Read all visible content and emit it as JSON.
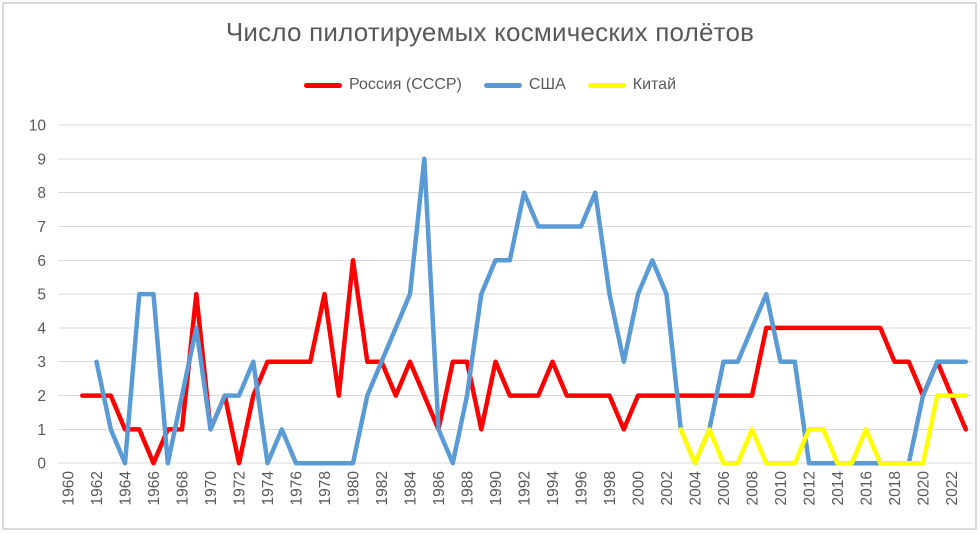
{
  "title": "Число пилотируемых космических полётов",
  "chart_data": {
    "type": "line",
    "title": "Число пилотируемых космических полётов",
    "legend_position": "top-center",
    "grid": "horizontal",
    "x_axis": {
      "start_year": 1960,
      "end_year": 2023,
      "tick_labels": [
        "1960",
        "1962",
        "1964",
        "1966",
        "1968",
        "1970",
        "1972",
        "1974",
        "1976",
        "1978",
        "1980",
        "1982",
        "1984",
        "1986",
        "1988",
        "1990",
        "1992",
        "1994",
        "1996",
        "1998",
        "2000",
        "2002",
        "2004",
        "2006",
        "2008",
        "2010",
        "2012",
        "2014",
        "2016",
        "2018",
        "2020",
        "2022"
      ]
    },
    "y_axis": {
      "min": 0,
      "max": 10,
      "tick_labels": [
        "0",
        "1",
        "2",
        "3",
        "4",
        "5",
        "6",
        "7",
        "8",
        "9",
        "10"
      ]
    },
    "series": [
      {
        "name": "Россия (СССР)",
        "slug": "russia-ussr",
        "color": "#FF0000",
        "start_year": 1961,
        "values": [
          2,
          2,
          2,
          1,
          1,
          0,
          1,
          1,
          5,
          1,
          2,
          0,
          2,
          3,
          3,
          3,
          3,
          5,
          2,
          6,
          3,
          3,
          2,
          3,
          2,
          1,
          3,
          3,
          1,
          3,
          2,
          2,
          2,
          3,
          2,
          2,
          2,
          2,
          1,
          2,
          2,
          2,
          2,
          2,
          2,
          2,
          2,
          2,
          4,
          4,
          4,
          4,
          4,
          4,
          4,
          4,
          4,
          3,
          3,
          2,
          3,
          2,
          1
        ]
      },
      {
        "name": "США",
        "slug": "usa",
        "color": "#5B9BD5",
        "start_year": 1962,
        "values": [
          3,
          1,
          0,
          5,
          5,
          0,
          2,
          4,
          1,
          2,
          2,
          3,
          0,
          1,
          0,
          0,
          0,
          0,
          0,
          2,
          3,
          4,
          5,
          9,
          1,
          0,
          2,
          5,
          6,
          6,
          8,
          7,
          7,
          7,
          7,
          8,
          5,
          3,
          5,
          6,
          5,
          1,
          0,
          1,
          3,
          3,
          4,
          5,
          3,
          3,
          0,
          0,
          0,
          0,
          0,
          0,
          0,
          0,
          2,
          3,
          3,
          3
        ]
      },
      {
        "name": "Китай",
        "slug": "china",
        "color": "#FFFF00",
        "start_year": 2003,
        "values": [
          1,
          0,
          1,
          0,
          0,
          1,
          0,
          0,
          0,
          1,
          1,
          0,
          0,
          1,
          0,
          0,
          0,
          0,
          2,
          2,
          2
        ]
      }
    ]
  },
  "colors": {
    "text": "#595959",
    "gridline": "#D9D9D9",
    "frame": "#D9D9D9",
    "background": "#FFFFFF"
  }
}
